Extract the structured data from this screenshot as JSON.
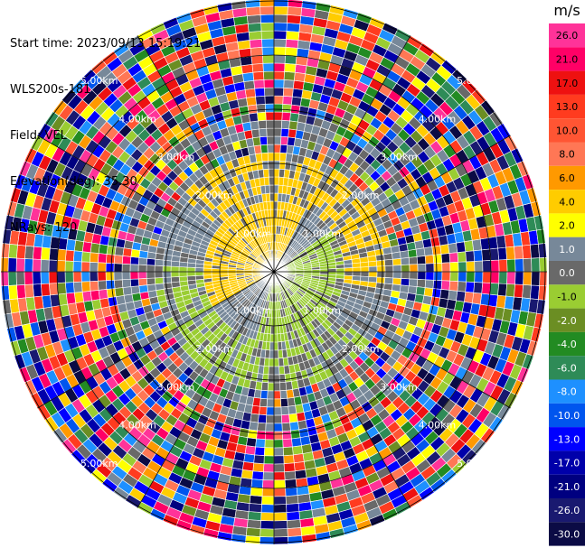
{
  "header": {
    "start_time": "Start time: 2023/09/13 15:19:21",
    "instrument": "WLS200s-181",
    "field": "Field: VEL",
    "elevation": "Elevation(deg): 35.30",
    "nrays": "NRays: 120"
  },
  "colorbar": {
    "unit": "m/s",
    "bins": [
      {
        "label": "26.0",
        "color": "#ff3399"
      },
      {
        "label": "21.0",
        "color": "#ff0066"
      },
      {
        "label": "17.0",
        "color": "#ee1111"
      },
      {
        "label": "13.0",
        "color": "#ff3b1f"
      },
      {
        "label": "10.0",
        "color": "#ff5533"
      },
      {
        "label": "8.0",
        "color": "#ff7755"
      },
      {
        "label": "6.0",
        "color": "#ff9900"
      },
      {
        "label": "4.0",
        "color": "#ffcc00"
      },
      {
        "label": "2.0",
        "color": "#ffff00"
      },
      {
        "label": "1.0",
        "color": "#778899"
      },
      {
        "label": "0.0",
        "color": "#696969"
      },
      {
        "label": "-1.0",
        "color": "#9acd32"
      },
      {
        "label": "-2.0",
        "color": "#6b8e23"
      },
      {
        "label": "-4.0",
        "color": "#228b22"
      },
      {
        "label": "-6.0",
        "color": "#2e8b57"
      },
      {
        "label": "-8.0",
        "color": "#1e90ff"
      },
      {
        "label": "-10.0",
        "color": "#0055ee"
      },
      {
        "label": "-13.0",
        "color": "#0000ff"
      },
      {
        "label": "-17.0",
        "color": "#0000aa"
      },
      {
        "label": "-21.0",
        "color": "#000080"
      },
      {
        "label": "-26.0",
        "color": "#191970"
      },
      {
        "label": "-30.0",
        "color": "#0b0b45"
      }
    ]
  },
  "range_rings": [
    {
      "label": "1.00km"
    },
    {
      "label": "2.00km"
    },
    {
      "label": "3.00km"
    },
    {
      "label": "4.00km"
    },
    {
      "label": "5.00km"
    }
  ]
}
